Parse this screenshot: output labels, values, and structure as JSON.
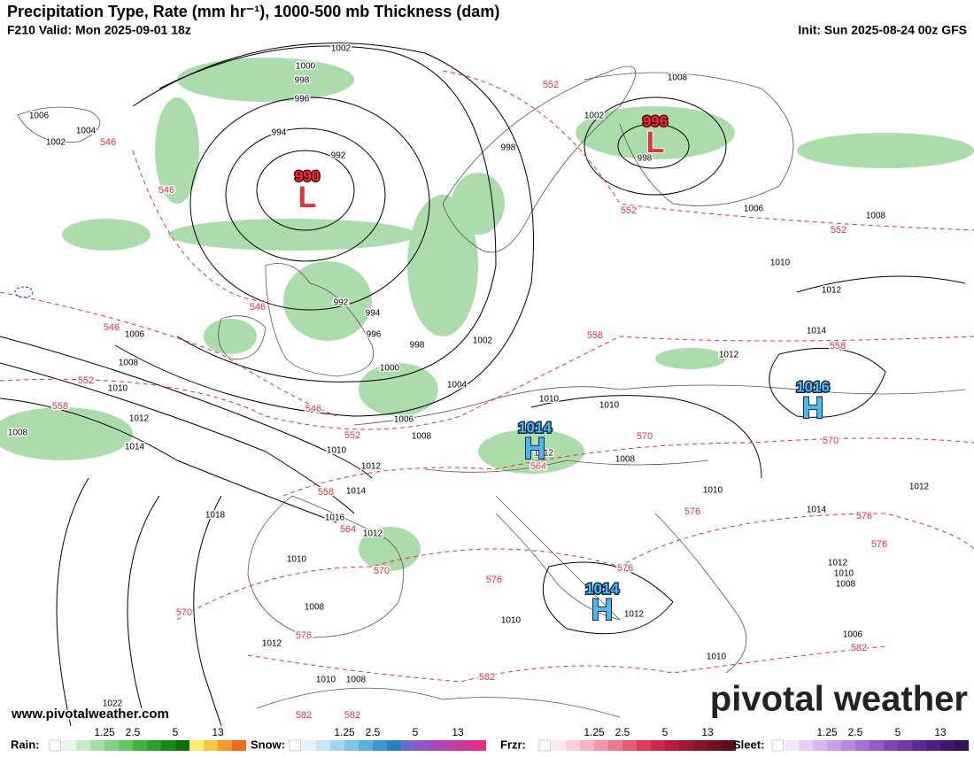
{
  "header": {
    "title": "Precipitation Type, Rate (mm hr⁻¹), 1000-500 mb Thickness (dam)",
    "valid": "F210 Valid: Mon 2025-09-01 18z",
    "init": "Init: Sun 2025-08-24 00z GFS"
  },
  "map": {
    "centers": [
      {
        "symbol": "L",
        "pressure": "990"
      },
      {
        "symbol": "L",
        "pressure": "996"
      },
      {
        "symbol": "H",
        "pressure": "1014"
      },
      {
        "symbol": "H",
        "pressure": "1016"
      },
      {
        "symbol": "H",
        "pressure": "1014"
      }
    ],
    "isobar_labels": [
      "1002",
      "1000",
      "998",
      "996",
      "994",
      "992",
      "1006",
      "1004",
      "1002",
      "992",
      "994",
      "996",
      "998",
      "1000",
      "1002",
      "1004",
      "1006",
      "1008",
      "1010",
      "1012",
      "1014",
      "1016",
      "1018",
      "1012",
      "1010",
      "1008",
      "1012",
      "1010",
      "1008",
      "1022",
      "1006",
      "1008",
      "1010",
      "1012",
      "1014",
      "1008",
      "998",
      "1002",
      "998",
      "1008",
      "1006",
      "1008",
      "1010",
      "1012",
      "1014",
      "1012",
      "1010",
      "1010",
      "1012",
      "1008",
      "1010",
      "1014",
      "1012",
      "1010",
      "1012",
      "1010",
      "1006",
      "1012",
      "1010",
      "1008"
    ],
    "thickness_labels": [
      "552",
      "546",
      "546",
      "552",
      "552",
      "546",
      "546",
      "552",
      "546",
      "558",
      "558",
      "552",
      "570",
      "570",
      "564",
      "558",
      "564",
      "570",
      "576",
      "576",
      "576",
      "576",
      "576",
      "570",
      "576",
      "582",
      "582",
      "582",
      "582",
      "558"
    ]
  },
  "footer": {
    "website": "www.pivotalweather.com",
    "logo": "pivotal weather"
  },
  "legend": [
    {
      "name": "Rain:",
      "ticks": [
        "1.25",
        "2.5",
        "5",
        "13"
      ]
    },
    {
      "name": "Snow:",
      "ticks": [
        "1.25",
        "2.5",
        "5",
        "13"
      ]
    },
    {
      "name": "Frzr:",
      "ticks": [
        "1.25",
        "2.5",
        "5",
        "13"
      ]
    },
    {
      "name": "Sleet:",
      "ticks": [
        "1.25",
        "2.5",
        "5",
        "13"
      ]
    }
  ]
}
